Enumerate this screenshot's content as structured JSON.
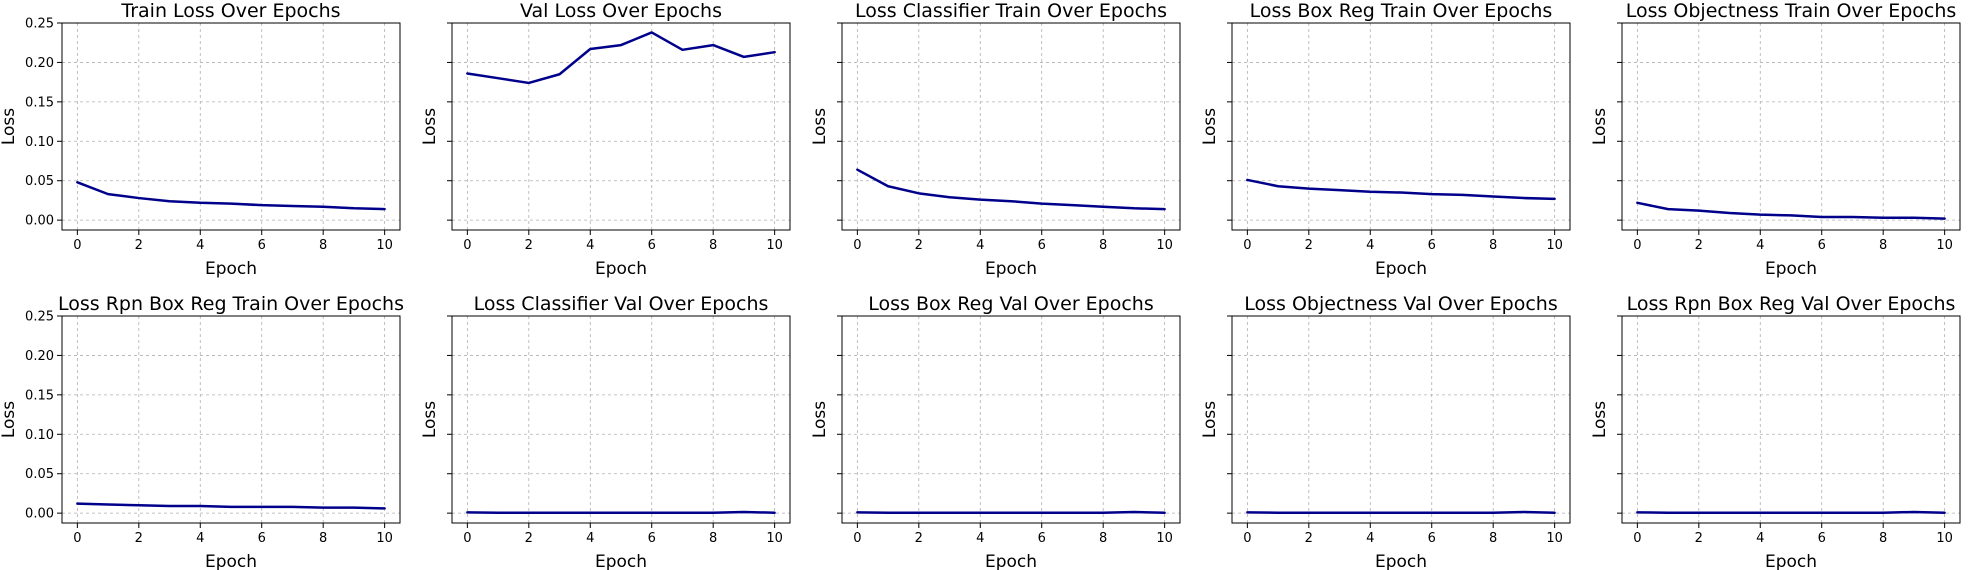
{
  "style": {
    "line_color": "#00008b",
    "grid": true
  },
  "chart_data": [
    {
      "type": "line",
      "title": "Train Loss Over Epochs",
      "xlabel": "Epoch",
      "ylabel": "Loss",
      "x": [
        0,
        1,
        2,
        3,
        4,
        5,
        6,
        7,
        8,
        9,
        10
      ],
      "values": [
        0.048,
        0.033,
        0.028,
        0.024,
        0.022,
        0.021,
        0.019,
        0.018,
        0.017,
        0.015,
        0.014
      ],
      "xlim": [
        -0.5,
        10.5
      ],
      "ylim": [
        -0.0125,
        0.25
      ],
      "xticks": [
        "0",
        "2",
        "4",
        "6",
        "8",
        "10"
      ],
      "yticks": [
        "0.00",
        "0.05",
        "0.10",
        "0.15",
        "0.20",
        "0.25"
      ]
    },
    {
      "type": "line",
      "title": "Val Loss Over Epochs",
      "xlabel": "Epoch",
      "ylabel": "Loss",
      "x": [
        0,
        1,
        2,
        3,
        4,
        5,
        6,
        7,
        8,
        9,
        10
      ],
      "values": [
        0.186,
        0.18,
        0.174,
        0.185,
        0.217,
        0.222,
        0.238,
        0.216,
        0.222,
        0.207,
        0.213
      ],
      "xlim": [
        -0.5,
        10.5
      ],
      "ylim": [
        -0.0125,
        0.25
      ],
      "xticks": [
        "0",
        "2",
        "4",
        "6",
        "8",
        "10"
      ],
      "yticks": []
    },
    {
      "type": "line",
      "title": "Loss Classifier Train Over Epochs",
      "xlabel": "Epoch",
      "ylabel": "Loss",
      "x": [
        0,
        1,
        2,
        3,
        4,
        5,
        6,
        7,
        8,
        9,
        10
      ],
      "values": [
        0.064,
        0.043,
        0.034,
        0.029,
        0.026,
        0.024,
        0.021,
        0.019,
        0.017,
        0.015,
        0.014
      ],
      "xlim": [
        -0.5,
        10.5
      ],
      "ylim": [
        -0.0125,
        0.25
      ],
      "xticks": [
        "0",
        "2",
        "4",
        "6",
        "8",
        "10"
      ],
      "yticks": []
    },
    {
      "type": "line",
      "title": "Loss Box Reg Train Over Epochs",
      "xlabel": "Epoch",
      "ylabel": "Loss",
      "x": [
        0,
        1,
        2,
        3,
        4,
        5,
        6,
        7,
        8,
        9,
        10
      ],
      "values": [
        0.051,
        0.043,
        0.04,
        0.038,
        0.036,
        0.035,
        0.033,
        0.032,
        0.03,
        0.028,
        0.027
      ],
      "xlim": [
        -0.5,
        10.5
      ],
      "ylim": [
        -0.0125,
        0.25
      ],
      "xticks": [
        "0",
        "2",
        "4",
        "6",
        "8",
        "10"
      ],
      "yticks": []
    },
    {
      "type": "line",
      "title": "Loss Objectness Train Over Epochs",
      "xlabel": "Epoch",
      "ylabel": "Loss",
      "x": [
        0,
        1,
        2,
        3,
        4,
        5,
        6,
        7,
        8,
        9,
        10
      ],
      "values": [
        0.022,
        0.014,
        0.012,
        0.009,
        0.007,
        0.006,
        0.004,
        0.004,
        0.003,
        0.003,
        0.002
      ],
      "xlim": [
        -0.5,
        10.5
      ],
      "ylim": [
        -0.0125,
        0.25
      ],
      "xticks": [
        "0",
        "2",
        "4",
        "6",
        "8",
        "10"
      ],
      "yticks": []
    },
    {
      "type": "line",
      "title": "Loss Rpn Box Reg Train Over Epochs",
      "xlabel": "Epoch",
      "ylabel": "Loss",
      "x": [
        0,
        1,
        2,
        3,
        4,
        5,
        6,
        7,
        8,
        9,
        10
      ],
      "values": [
        0.012,
        0.011,
        0.01,
        0.009,
        0.009,
        0.008,
        0.008,
        0.008,
        0.007,
        0.007,
        0.006
      ],
      "xlim": [
        -0.5,
        10.5
      ],
      "ylim": [
        -0.0125,
        0.25
      ],
      "xticks": [
        "0",
        "2",
        "4",
        "6",
        "8",
        "10"
      ],
      "yticks": [
        "0.00",
        "0.05",
        "0.10",
        "0.15",
        "0.20",
        "0.25"
      ]
    },
    {
      "type": "line",
      "title": "Loss Classifier Val Over Epochs",
      "xlabel": "Epoch",
      "ylabel": "Loss",
      "x": [
        0,
        1,
        2,
        3,
        4,
        5,
        6,
        7,
        8,
        9,
        10
      ],
      "values": [
        0.001,
        0.0005,
        0.0005,
        0.0005,
        0.0005,
        0.0005,
        0.0005,
        0.0005,
        0.0005,
        0.0015,
        0.0005
      ],
      "xlim": [
        -0.5,
        10.5
      ],
      "ylim": [
        -0.0125,
        0.25
      ],
      "xticks": [
        "0",
        "2",
        "4",
        "6",
        "8",
        "10"
      ],
      "yticks": []
    },
    {
      "type": "line",
      "title": "Loss Box Reg Val Over Epochs",
      "xlabel": "Epoch",
      "ylabel": "Loss",
      "x": [
        0,
        1,
        2,
        3,
        4,
        5,
        6,
        7,
        8,
        9,
        10
      ],
      "values": [
        0.001,
        0.0005,
        0.0005,
        0.0005,
        0.0005,
        0.0005,
        0.0005,
        0.0005,
        0.0005,
        0.0015,
        0.0005
      ],
      "xlim": [
        -0.5,
        10.5
      ],
      "ylim": [
        -0.0125,
        0.25
      ],
      "xticks": [
        "0",
        "2",
        "4",
        "6",
        "8",
        "10"
      ],
      "yticks": []
    },
    {
      "type": "line",
      "title": "Loss Objectness Val Over Epochs",
      "xlabel": "Epoch",
      "ylabel": "Loss",
      "x": [
        0,
        1,
        2,
        3,
        4,
        5,
        6,
        7,
        8,
        9,
        10
      ],
      "values": [
        0.001,
        0.0005,
        0.0005,
        0.0005,
        0.0005,
        0.0005,
        0.0005,
        0.0005,
        0.0005,
        0.0015,
        0.0005
      ],
      "xlim": [
        -0.5,
        10.5
      ],
      "ylim": [
        -0.0125,
        0.25
      ],
      "xticks": [
        "0",
        "2",
        "4",
        "6",
        "8",
        "10"
      ],
      "yticks": []
    },
    {
      "type": "line",
      "title": "Loss Rpn Box Reg Val Over Epochs",
      "xlabel": "Epoch",
      "ylabel": "Loss",
      "x": [
        0,
        1,
        2,
        3,
        4,
        5,
        6,
        7,
        8,
        9,
        10
      ],
      "values": [
        0.001,
        0.0005,
        0.0005,
        0.0005,
        0.0005,
        0.0005,
        0.0005,
        0.0005,
        0.0005,
        0.0015,
        0.0005
      ],
      "xlim": [
        -0.5,
        10.5
      ],
      "ylim": [
        -0.0125,
        0.25
      ],
      "xticks": [
        "0",
        "2",
        "4",
        "6",
        "8",
        "10"
      ],
      "yticks": []
    }
  ]
}
